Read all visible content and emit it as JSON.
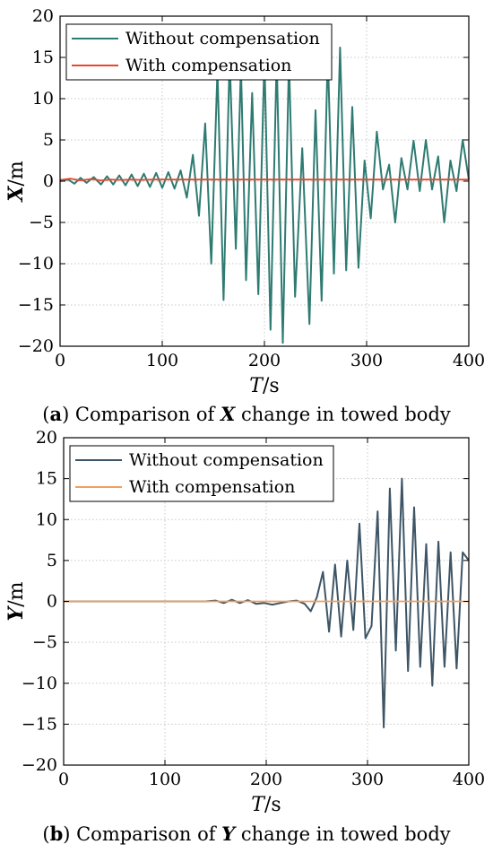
{
  "chart_data": [
    {
      "type": "line",
      "caption_letter": "a",
      "caption_text": "Comparison of ",
      "caption_var": "X",
      "caption_tail": " change in towed body",
      "xlabel_var": "T",
      "xlabel_unit": "/s",
      "ylabel_var": "X",
      "ylabel_unit": "/m",
      "xlim": [
        0,
        400
      ],
      "ylim": [
        -20,
        20
      ],
      "xticks": [
        "0",
        "100",
        "200",
        "300",
        "400"
      ],
      "yticks": [
        "−20",
        "−15",
        "−10",
        "−5",
        "0",
        "5",
        "10",
        "15",
        "20"
      ],
      "grid": true,
      "legend_position": "top-left",
      "series": [
        {
          "name": "Without compensation",
          "color": "#2e7b72",
          "x": [
            0,
            8,
            14,
            20,
            26,
            33,
            40,
            46,
            52,
            58,
            64,
            70,
            76,
            82,
            88,
            94,
            100,
            106,
            112,
            118,
            124,
            130,
            136,
            142,
            148,
            154,
            160,
            166,
            172,
            177,
            182,
            188,
            194,
            200,
            206,
            212,
            218,
            224,
            230,
            237,
            244,
            250,
            256,
            262,
            268,
            274,
            280,
            286,
            292,
            298,
            304,
            310,
            316,
            322,
            328,
            334,
            340,
            346,
            352,
            358,
            364,
            370,
            376,
            382,
            388,
            394,
            400
          ],
          "y": [
            0,
            0.2,
            -0.3,
            0.4,
            -0.2,
            0.5,
            -0.4,
            0.6,
            -0.4,
            0.7,
            -0.5,
            0.8,
            -0.6,
            0.9,
            -0.7,
            1.0,
            -0.8,
            1.1,
            -0.9,
            1.3,
            -2.0,
            3.2,
            -4.2,
            7.0,
            -10.0,
            13.5,
            -14.4,
            15.0,
            -8.2,
            14.0,
            -12.0,
            10.7,
            -13.7,
            15.0,
            -18.0,
            15.0,
            -19.6,
            14.8,
            -14.0,
            4.0,
            -17.3,
            8.6,
            -14.5,
            15.5,
            -11.2,
            16.2,
            -10.8,
            9.0,
            -10.5,
            2.5,
            -4.5,
            6.0,
            -1.0,
            2.0,
            -5.0,
            2.8,
            -1.0,
            4.9,
            -1.2,
            5.0,
            -1.0,
            3.0,
            -5.0,
            2.5,
            -1.2,
            5.0,
            0.2
          ]
        },
        {
          "name": "With compensation",
          "color": "#e8472d",
          "x": [
            0,
            10,
            20,
            30,
            40,
            50,
            60,
            70,
            80,
            90,
            100,
            150,
            200,
            250,
            300,
            350,
            400
          ],
          "y": [
            0.15,
            0.3,
            0.1,
            0.25,
            0.1,
            0.2,
            0.15,
            0.2,
            0.15,
            0.2,
            0.2,
            0.2,
            0.2,
            0.2,
            0.2,
            0.2,
            0.2
          ]
        }
      ]
    },
    {
      "type": "line",
      "caption_letter": "b",
      "caption_text": "Comparison of ",
      "caption_var": "Y",
      "caption_tail": " change in towed body",
      "xlabel_var": "T",
      "xlabel_unit": "/s",
      "ylabel_var": "Y",
      "ylabel_unit": "/m",
      "xlim": [
        0,
        400
      ],
      "ylim": [
        -20,
        20
      ],
      "xticks": [
        "0",
        "100",
        "200",
        "300",
        "400"
      ],
      "yticks": [
        "−20",
        "−15",
        "−10",
        "−5",
        "0",
        "5",
        "10",
        "15",
        "20"
      ],
      "grid": true,
      "legend_position": "top-left",
      "series": [
        {
          "name": "Without compensation",
          "color": "#3d5566",
          "x": [
            0,
            140,
            150,
            158,
            166,
            174,
            182,
            190,
            198,
            206,
            214,
            222,
            230,
            238,
            244,
            250,
            256,
            262,
            268,
            274,
            280,
            286,
            292,
            298,
            304,
            310,
            316,
            322,
            328,
            334,
            340,
            346,
            352,
            358,
            364,
            370,
            376,
            382,
            388,
            394,
            400
          ],
          "y": [
            0,
            0,
            0.1,
            -0.2,
            0.2,
            -0.2,
            0.15,
            -0.3,
            -0.2,
            -0.4,
            -0.2,
            0.0,
            0.1,
            -0.3,
            -1.2,
            0.5,
            3.6,
            -3.7,
            4.5,
            -4.3,
            5.0,
            -3.5,
            9.5,
            -4.5,
            -3.0,
            11.0,
            -15.4,
            13.8,
            -6.0,
            15.0,
            -8.5,
            11.5,
            -8.0,
            7.0,
            -10.3,
            7.3,
            -8.0,
            6.0,
            -8.2,
            6.0,
            5.0
          ]
        },
        {
          "name": "With compensation",
          "color": "#f0a060",
          "x": [
            0,
            400
          ],
          "y": [
            0,
            0
          ]
        }
      ]
    }
  ]
}
